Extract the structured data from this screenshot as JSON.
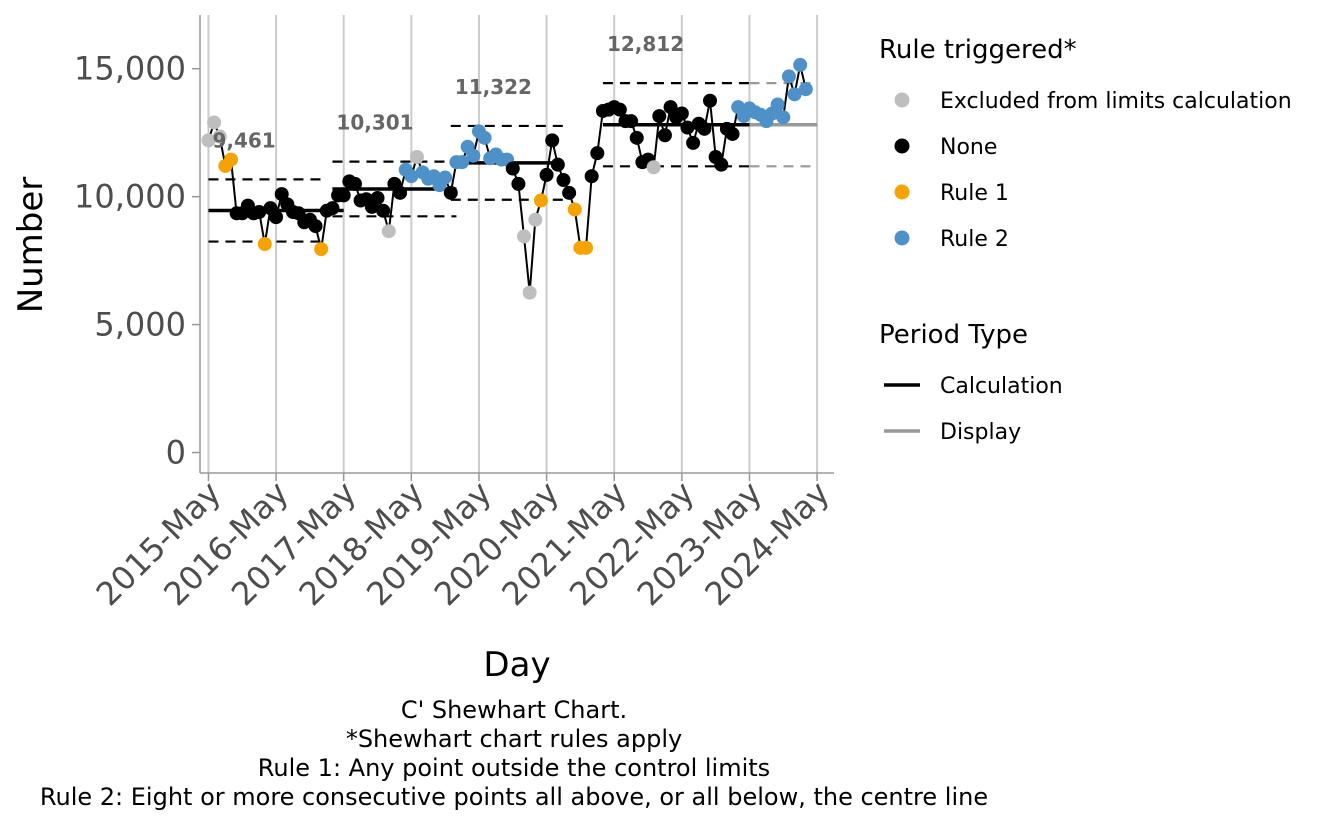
{
  "chart_data": {
    "type": "line",
    "subtype": "shewhart-c-prime",
    "xlabel": "Day",
    "ylabel": "Number",
    "ylim": [
      -800,
      17100
    ],
    "y_ticks": [
      0,
      5000,
      10000,
      15000
    ],
    "y_tick_labels": [
      "0",
      "5,000",
      "10,000",
      "15,000"
    ],
    "x_domain_months": [
      -1.5,
      111
    ],
    "x_ticks": [
      {
        "month": 0,
        "label": "2015-May"
      },
      {
        "month": 12,
        "label": "2016-May"
      },
      {
        "month": 24,
        "label": "2017-May"
      },
      {
        "month": 36,
        "label": "2018-May"
      },
      {
        "month": 48,
        "label": "2019-May"
      },
      {
        "month": 60,
        "label": "2020-May"
      },
      {
        "month": 72,
        "label": "2021-May"
      },
      {
        "month": 84,
        "label": "2022-May"
      },
      {
        "month": 96,
        "label": "2023-May"
      },
      {
        "month": 108,
        "label": "2024-May"
      }
    ],
    "month_index_note": "x values are months since 2015-May",
    "rule_colors": {
      "Excluded from limits calculation": "#BEBEBE",
      "None": "#000000",
      "Rule 1": "#F5A300",
      "Rule 2": "#4E91C8"
    },
    "period_colors": {
      "Calculation": "#000000",
      "Display": "#999999"
    },
    "periods": [
      {
        "start": 0,
        "end": 12,
        "centre": 9461,
        "ucl": 10676,
        "lcl": 8246,
        "label": "9,461",
        "centre_type": "Calculation",
        "limit_start": 0,
        "limit_end": 20.5,
        "centre_start": 0,
        "centre_end": 24
      },
      {
        "start": 22,
        "end": 44,
        "centre": 10301,
        "ucl": 11369,
        "lcl": 9233,
        "label": "10,301",
        "centre_type": "Calculation",
        "limit_start": 22,
        "limit_end": 44,
        "centre_start": 22,
        "centre_end": 44
      },
      {
        "start": 43,
        "end": 63,
        "centre": 11322,
        "ucl": 12764,
        "lcl": 9880,
        "label": "11,322",
        "centre_type": "Calculation",
        "limit_start": 43,
        "limit_end": 63,
        "centre_start": 43,
        "centre_end": 63
      },
      {
        "start": 70,
        "end": 108,
        "centre": 12812,
        "ucl": 14438,
        "lcl": 11186,
        "label": "12,812",
        "centre_type": "Calculation",
        "limit_start": 70,
        "limit_end": 108,
        "centre_start": 70,
        "centre_end": 108,
        "display_segments": [
          {
            "start": 96,
            "end": 108
          }
        ]
      }
    ],
    "points": [
      {
        "x": 0,
        "y": 12200,
        "rule": "Excluded from limits calculation"
      },
      {
        "x": 1,
        "y": 12900,
        "rule": "Excluded from limits calculation"
      },
      {
        "x": 2,
        "y": 12350,
        "rule": "Excluded from limits calculation"
      },
      {
        "x": 3,
        "y": 11200,
        "rule": "Rule 1"
      },
      {
        "x": 4,
        "y": 11450,
        "rule": "Rule 1"
      },
      {
        "x": 5,
        "y": 9350,
        "rule": "None"
      },
      {
        "x": 6,
        "y": 9350,
        "rule": "None"
      },
      {
        "x": 7,
        "y": 9650,
        "rule": "None"
      },
      {
        "x": 8,
        "y": 9350,
        "rule": "None"
      },
      {
        "x": 9,
        "y": 9400,
        "rule": "None"
      },
      {
        "x": 10,
        "y": 8150,
        "rule": "Rule 1"
      },
      {
        "x": 11,
        "y": 9550,
        "rule": "None"
      },
      {
        "x": 12,
        "y": 9200,
        "rule": "None"
      },
      {
        "x": 13,
        "y": 10100,
        "rule": "None"
      },
      {
        "x": 14,
        "y": 9700,
        "rule": "None"
      },
      {
        "x": 15,
        "y": 9400,
        "rule": "None"
      },
      {
        "x": 16,
        "y": 9350,
        "rule": "None"
      },
      {
        "x": 17,
        "y": 9000,
        "rule": "None"
      },
      {
        "x": 18,
        "y": 9100,
        "rule": "None"
      },
      {
        "x": 19,
        "y": 8850,
        "rule": "None"
      },
      {
        "x": 20,
        "y": 7950,
        "rule": "Rule 1"
      },
      {
        "x": 21,
        "y": 9450,
        "rule": "None"
      },
      {
        "x": 22,
        "y": 9550,
        "rule": "None"
      },
      {
        "x": 23,
        "y": 10050,
        "rule": "None"
      },
      {
        "x": 24,
        "y": 10050,
        "rule": "None"
      },
      {
        "x": 25,
        "y": 10600,
        "rule": "None"
      },
      {
        "x": 26,
        "y": 10500,
        "rule": "None"
      },
      {
        "x": 27,
        "y": 9850,
        "rule": "None"
      },
      {
        "x": 28,
        "y": 9900,
        "rule": "None"
      },
      {
        "x": 29,
        "y": 9600,
        "rule": "None"
      },
      {
        "x": 30,
        "y": 9950,
        "rule": "None"
      },
      {
        "x": 31,
        "y": 9450,
        "rule": "None"
      },
      {
        "x": 32,
        "y": 8650,
        "rule": "Excluded from limits calculation"
      },
      {
        "x": 33,
        "y": 10500,
        "rule": "None"
      },
      {
        "x": 34,
        "y": 10150,
        "rule": "None"
      },
      {
        "x": 35,
        "y": 11050,
        "rule": "Rule 2"
      },
      {
        "x": 36,
        "y": 10800,
        "rule": "Rule 2"
      },
      {
        "x": 37,
        "y": 11550,
        "rule": "Excluded from limits calculation"
      },
      {
        "x": 38,
        "y": 10950,
        "rule": "Rule 2"
      },
      {
        "x": 39,
        "y": 10700,
        "rule": "Rule 2"
      },
      {
        "x": 40,
        "y": 10800,
        "rule": "Rule 2"
      },
      {
        "x": 41,
        "y": 10450,
        "rule": "Rule 2"
      },
      {
        "x": 42,
        "y": 10750,
        "rule": "Rule 2"
      },
      {
        "x": 43,
        "y": 10150,
        "rule": "None"
      },
      {
        "x": 44,
        "y": 11350,
        "rule": "Rule 2"
      },
      {
        "x": 45,
        "y": 11350,
        "rule": "Rule 2"
      },
      {
        "x": 46,
        "y": 11950,
        "rule": "Rule 2"
      },
      {
        "x": 47,
        "y": 11600,
        "rule": "Rule 2"
      },
      {
        "x": 48,
        "y": 12550,
        "rule": "Rule 2"
      },
      {
        "x": 49,
        "y": 12300,
        "rule": "Rule 2"
      },
      {
        "x": 50,
        "y": 11500,
        "rule": "Rule 2"
      },
      {
        "x": 51,
        "y": 11650,
        "rule": "Rule 2"
      },
      {
        "x": 52,
        "y": 11450,
        "rule": "Rule 2"
      },
      {
        "x": 53,
        "y": 11450,
        "rule": "Rule 2"
      },
      {
        "x": 54,
        "y": 11100,
        "rule": "None"
      },
      {
        "x": 55,
        "y": 10500,
        "rule": "None"
      },
      {
        "x": 56,
        "y": 8450,
        "rule": "Excluded from limits calculation"
      },
      {
        "x": 57,
        "y": 6250,
        "rule": "Excluded from limits calculation"
      },
      {
        "x": 58,
        "y": 9100,
        "rule": "Excluded from limits calculation"
      },
      {
        "x": 59,
        "y": 9850,
        "rule": "Rule 1"
      },
      {
        "x": 60,
        "y": 10850,
        "rule": "None"
      },
      {
        "x": 61,
        "y": 12200,
        "rule": "None"
      },
      {
        "x": 62,
        "y": 11250,
        "rule": "None"
      },
      {
        "x": 63,
        "y": 10650,
        "rule": "None"
      },
      {
        "x": 64,
        "y": 10150,
        "rule": "None"
      },
      {
        "x": 65,
        "y": 9500,
        "rule": "Rule 1"
      },
      {
        "x": 66,
        "y": 8000,
        "rule": "Rule 1"
      },
      {
        "x": 67,
        "y": 8000,
        "rule": "Rule 1"
      },
      {
        "x": 68,
        "y": 10800,
        "rule": "None"
      },
      {
        "x": 69,
        "y": 11700,
        "rule": "None"
      },
      {
        "x": 70,
        "y": 13350,
        "rule": "None"
      },
      {
        "x": 71,
        "y": 13400,
        "rule": "None"
      },
      {
        "x": 72,
        "y": 13500,
        "rule": "None"
      },
      {
        "x": 73,
        "y": 13400,
        "rule": "None"
      },
      {
        "x": 74,
        "y": 12950,
        "rule": "None"
      },
      {
        "x": 75,
        "y": 12950,
        "rule": "None"
      },
      {
        "x": 76,
        "y": 12300,
        "rule": "None"
      },
      {
        "x": 77,
        "y": 11350,
        "rule": "None"
      },
      {
        "x": 78,
        "y": 11450,
        "rule": "None"
      },
      {
        "x": 79,
        "y": 11150,
        "rule": "Excluded from limits calculation"
      },
      {
        "x": 80,
        "y": 13150,
        "rule": "None"
      },
      {
        "x": 81,
        "y": 12400,
        "rule": "None"
      },
      {
        "x": 82,
        "y": 13500,
        "rule": "None"
      },
      {
        "x": 83,
        "y": 13100,
        "rule": "None"
      },
      {
        "x": 84,
        "y": 13250,
        "rule": "None"
      },
      {
        "x": 85,
        "y": 12700,
        "rule": "None"
      },
      {
        "x": 86,
        "y": 12100,
        "rule": "None"
      },
      {
        "x": 87,
        "y": 12850,
        "rule": "None"
      },
      {
        "x": 88,
        "y": 12650,
        "rule": "None"
      },
      {
        "x": 89,
        "y": 13750,
        "rule": "None"
      },
      {
        "x": 90,
        "y": 11550,
        "rule": "None"
      },
      {
        "x": 91,
        "y": 11250,
        "rule": "None"
      },
      {
        "x": 92,
        "y": 12650,
        "rule": "None"
      },
      {
        "x": 93,
        "y": 12450,
        "rule": "None"
      },
      {
        "x": 94,
        "y": 13500,
        "rule": "Rule 2"
      },
      {
        "x": 95,
        "y": 13150,
        "rule": "Rule 2"
      },
      {
        "x": 96,
        "y": 13450,
        "rule": "Rule 2"
      },
      {
        "x": 97,
        "y": 13300,
        "rule": "Rule 2"
      },
      {
        "x": 98,
        "y": 13200,
        "rule": "Rule 2"
      },
      {
        "x": 99,
        "y": 12950,
        "rule": "Rule 2"
      },
      {
        "x": 100,
        "y": 13250,
        "rule": "Rule 2"
      },
      {
        "x": 101,
        "y": 13600,
        "rule": "Rule 2"
      },
      {
        "x": 102,
        "y": 13100,
        "rule": "Rule 2"
      },
      {
        "x": 103,
        "y": 14700,
        "rule": "Rule 2"
      },
      {
        "x": 104,
        "y": 14000,
        "rule": "Rule 2"
      },
      {
        "x": 105,
        "y": 15150,
        "rule": "Rule 2"
      },
      {
        "x": 106,
        "y": 14200,
        "rule": "Rule 2"
      }
    ],
    "legend": {
      "position": "right",
      "rule_title": "Rule triggered*",
      "rule_items": [
        "Excluded from limits calculation",
        "None",
        "Rule 1",
        "Rule 2"
      ],
      "period_title": "Period Type",
      "period_items": [
        "Calculation",
        "Display"
      ]
    },
    "caption": [
      "C' Shewhart Chart.",
      "*Shewhart chart rules apply",
      "Rule 1: Any point outside the control limits",
      "Rule 2: Eight or more consecutive points all above, or all below, the centre line"
    ]
  }
}
